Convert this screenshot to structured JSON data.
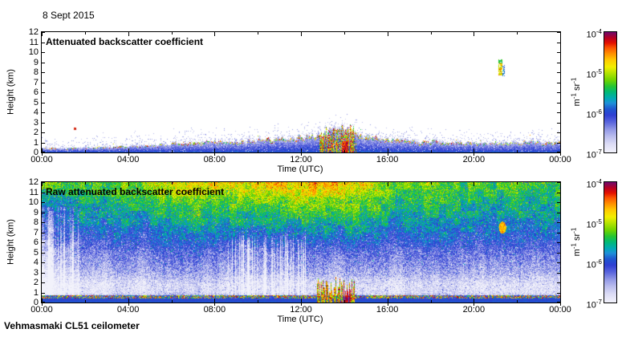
{
  "figure": {
    "date_title": "8 Sept 2015",
    "footer_label": "Vehmasmaki CL51 ceilometer"
  },
  "panels": [
    {
      "title": "Attenuated backscatter coefficient"
    },
    {
      "title": "Raw attenuated backscatter coefficient"
    }
  ],
  "axes": {
    "x_label": "Time (UTC)",
    "x_tick_labels": [
      "00:00",
      "04:00",
      "08:00",
      "12:00",
      "16:00",
      "20:00",
      "00:00"
    ],
    "x_range_hours": [
      0,
      24
    ],
    "y_label": "Height (km)",
    "y_tick_labels": [
      "0",
      "1",
      "2",
      "3",
      "4",
      "5",
      "6",
      "7",
      "8",
      "9",
      "10",
      "11",
      "12"
    ],
    "y_range_km": [
      0,
      12
    ]
  },
  "colorbar": {
    "unit_tokens": [
      {
        "t": "m"
      },
      {
        "s": "-1"
      },
      {
        "t": " sr"
      },
      {
        "s": "-1"
      }
    ],
    "ticks": [
      {
        "base": "10",
        "exp": "-4"
      },
      {
        "base": "10",
        "exp": "-5"
      },
      {
        "base": "10",
        "exp": "-6"
      },
      {
        "base": "10",
        "exp": "-7"
      }
    ],
    "scale": "log",
    "range": [
      "1e-7",
      "1e-4"
    ],
    "stops": [
      [
        0.0,
        "#f2f2fb"
      ],
      [
        0.07,
        "#dcdcf5"
      ],
      [
        0.13,
        "#bcbfee"
      ],
      [
        0.19,
        "#9399e6"
      ],
      [
        0.25,
        "#5b66dd"
      ],
      [
        0.31,
        "#2f3fd3"
      ],
      [
        0.36,
        "#1f55cf"
      ],
      [
        0.41,
        "#1e90d8"
      ],
      [
        0.45,
        "#00aab4"
      ],
      [
        0.5,
        "#00b878"
      ],
      [
        0.55,
        "#25c531"
      ],
      [
        0.6,
        "#6fd400"
      ],
      [
        0.66,
        "#b5e300"
      ],
      [
        0.71,
        "#f2ef00"
      ],
      [
        0.77,
        "#ffc800"
      ],
      [
        0.82,
        "#ff9000"
      ],
      [
        0.87,
        "#fb5300"
      ],
      [
        0.91,
        "#e31000"
      ],
      [
        0.95,
        "#b80021"
      ],
      [
        1.0,
        "#6e0a6e"
      ]
    ]
  },
  "chart_data": [
    {
      "type": "heatmap",
      "title": "Attenuated backscatter coefficient",
      "xlabel": "Time (UTC)",
      "ylabel": "Height (km)",
      "x_range_hours": [
        0,
        24
      ],
      "y_range_km": [
        0,
        12
      ],
      "z_unit": "m-1 sr-1",
      "z_scale": "log",
      "z_range": [
        "1e-7",
        "1e-4"
      ],
      "background": "white below detection threshold",
      "boundary_layer_top_km": [
        [
          0,
          0.4
        ],
        [
          2,
          0.45
        ],
        [
          4,
          0.6
        ],
        [
          6,
          0.85
        ],
        [
          8,
          1.05
        ],
        [
          10,
          1.2
        ],
        [
          12,
          1.5
        ],
        [
          13,
          1.8
        ],
        [
          13.5,
          2.3
        ],
        [
          14,
          2.5
        ],
        [
          14.5,
          1.9
        ],
        [
          15,
          1.5
        ],
        [
          16,
          1.3
        ],
        [
          18,
          1.05
        ],
        [
          20,
          0.95
        ],
        [
          22,
          1.0
        ],
        [
          24,
          1.05
        ]
      ],
      "features": [
        {
          "name": "aerosol-boundary-layer",
          "time_h": [
            0,
            24
          ],
          "height_km": [
            0,
            2.5
          ],
          "appearance": "blue layer, red/green/yellow speckled top edge, light-blue flecks above"
        },
        {
          "name": "precipitation-plume",
          "time_h": [
            12.85,
            14.55
          ],
          "height_km": [
            0,
            3.0
          ],
          "appearance": "intense red/yellow/green columns with dark-red core near 14:00"
        },
        {
          "name": "cirrus-cloud",
          "time_h": [
            21.15,
            21.45
          ],
          "height_km": [
            7.6,
            9.3
          ],
          "appearance": "small yellow/orange streak with green top and cyan/blue streak"
        },
        {
          "name": "isolated-speck",
          "time_h": [
            1.5,
            1.6
          ],
          "height_km": [
            2.25,
            2.45
          ],
          "appearance": "tiny red speck"
        }
      ]
    },
    {
      "type": "heatmap",
      "title": "Raw attenuated backscatter coefficient",
      "xlabel": "Time (UTC)",
      "ylabel": "Height (km)",
      "x_range_hours": [
        0,
        24
      ],
      "y_range_km": [
        0,
        12
      ],
      "z_unit": "m-1 sr-1",
      "z_scale": "log",
      "z_range": [
        "1e-7",
        "1e-4"
      ],
      "background": "full-field range-dependent speckle noise",
      "noise_profile_u": [
        [
          0,
          0.35
        ],
        [
          0.4,
          0.34
        ],
        [
          0.6,
          0.16
        ],
        [
          1.0,
          0.06
        ],
        [
          1.8,
          0.06
        ],
        [
          3,
          0.16
        ],
        [
          5,
          0.25
        ],
        [
          7,
          0.37
        ],
        [
          9,
          0.47
        ],
        [
          12,
          0.54
        ]
      ],
      "features": [
        {
          "name": "range-dependent-noise",
          "appearance": "white/blue speckle low, green mid, yellow-orange patches aloft"
        },
        {
          "name": "daytime-warm-patches",
          "time_h": [
            6,
            16
          ],
          "height_km": [
            7,
            12
          ],
          "appearance": "orange/red noise patches strongest mid-day"
        },
        {
          "name": "low-signal-early-morning",
          "time_h": [
            0,
            1.7
          ],
          "height_km": [
            0.7,
            10
          ],
          "appearance": "white vertical stripes with blue speckle"
        },
        {
          "name": "white-low-band",
          "time_h": [
            0,
            24
          ],
          "height_km": [
            0.8,
            2.0
          ],
          "appearance": "pale lavender band of lowest values"
        },
        {
          "name": "surface-layer",
          "time_h": [
            0,
            24
          ],
          "height_km": [
            0,
            0.45
          ],
          "appearance": "solid blue band with red/green speckle along its top"
        },
        {
          "name": "precipitation-plume",
          "time_h": [
            12.75,
            14.5
          ],
          "height_km": [
            0,
            2.6
          ],
          "appearance": "yellow/red/green columns, dark-red core near 14:00"
        },
        {
          "name": "orange-blob",
          "time_h": [
            21.2,
            21.5
          ],
          "height_km": [
            6.9,
            8.0
          ],
          "appearance": "small orange patch"
        },
        {
          "name": "vertical-white-streaks",
          "time_h": [
            8.2,
            12.3
          ],
          "height_km": [
            0.7,
            7.5
          ],
          "appearance": "columns of reduced signal"
        },
        {
          "name": "attenuated-white-pockets",
          "time_h": [
            14.55,
            16.15
          ],
          "height_km": [
            0.7,
            2.35
          ],
          "appearance": "bright white pocket, repeated 19:00-23:30 at 0.8-2 km"
        }
      ]
    }
  ]
}
